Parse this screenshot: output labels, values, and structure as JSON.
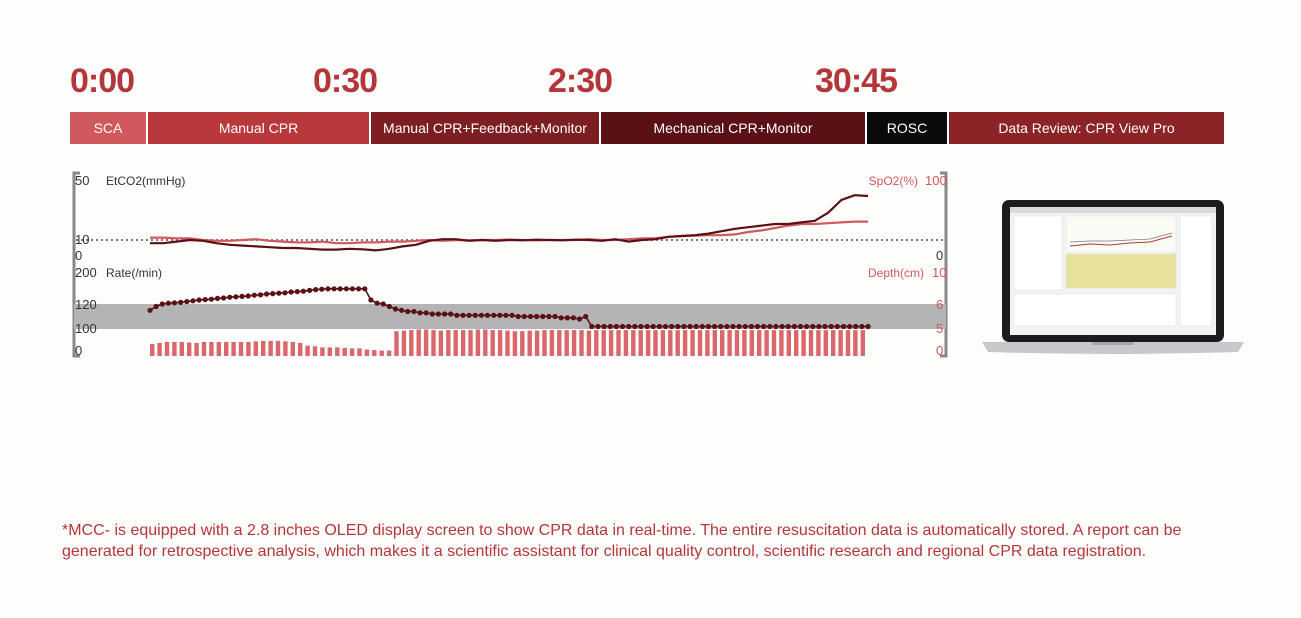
{
  "timeline": {
    "times": [
      "0:00",
      "0:30",
      "2:30",
      "30:45"
    ],
    "phases": [
      {
        "label": "SCA",
        "color": "#d0595d"
      },
      {
        "label": "Manual CPR",
        "color": "#b8383b"
      },
      {
        "label": "Manual CPR+Feedback+Monitor",
        "color": "#7c1e22"
      },
      {
        "label": "Mechanical CPR+Monitor",
        "color": "#5a1014"
      },
      {
        "label": "ROSC",
        "color": "#0a0a0a"
      },
      {
        "label": "Data Review: CPR View Pro",
        "color": "#8b2327"
      }
    ]
  },
  "chart_data": [
    {
      "type": "line",
      "ylabel_left": "EtCO2(mmHg)",
      "ylabel_right": "SpO2(%)",
      "left_ticks": [
        "50",
        "10",
        "0"
      ],
      "right_ticks": [
        "100",
        "0"
      ],
      "ylim_left": [
        0,
        50
      ],
      "ylim_right": [
        0,
        100
      ],
      "reference_line": 10,
      "series": [
        {
          "name": "EtCO2(mmHg)",
          "color": "#5a1014",
          "values": [
            8,
            8,
            9,
            10,
            9.5,
            8,
            7,
            6.5,
            6,
            5.5,
            5,
            5,
            4.5,
            4,
            4,
            4.5,
            4.2,
            3.5,
            4.5,
            6,
            7,
            9.5,
            10.5,
            10.5,
            9.5,
            10,
            9.5,
            10,
            9.8,
            10.2,
            10,
            9.8,
            10.2,
            10,
            9.5,
            10.5,
            9,
            10,
            10.5,
            12,
            12.5,
            13,
            14,
            15.5,
            17,
            18,
            19,
            20,
            20,
            21,
            22,
            27,
            35,
            38,
            37.5
          ]
        },
        {
          "name": "SpO2(%)",
          "color": "#d0595d",
          "values": [
            23,
            23,
            22,
            22,
            20,
            19,
            19,
            20,
            21,
            19,
            18,
            17,
            17,
            18,
            16,
            16,
            17,
            17,
            18,
            18,
            19,
            20,
            19,
            20,
            19.5,
            20,
            20,
            20.5,
            20,
            19.5,
            20,
            20,
            20,
            21,
            20,
            20,
            21,
            22,
            22,
            24,
            25,
            25.5,
            26,
            26,
            27,
            30,
            32,
            35,
            38,
            40,
            40,
            41,
            42,
            43,
            43
          ]
        }
      ]
    },
    {
      "type": "bar",
      "ylabel_left": "Rate(/min)",
      "ylabel_right": "Depth(cm)",
      "left_ticks": [
        "200",
        "120",
        "100",
        "0"
      ],
      "right_ticks": [
        "10",
        "6",
        "5",
        "0"
      ],
      "ylim_left": [
        0,
        200
      ],
      "ylim_right": [
        0,
        10
      ],
      "target_band_rate": [
        100,
        120
      ],
      "series": [
        {
          "name": "Rate(/min)",
          "type": "line",
          "color": "#5a1014",
          "values": [
            115,
            118,
            120,
            122,
            123,
            124,
            126,
            128,
            130,
            131,
            132,
            134,
            135,
            137,
            138,
            139,
            140,
            142,
            143,
            145,
            146,
            147,
            148,
            150,
            151,
            152,
            154,
            156,
            157,
            158,
            158,
            158,
            158,
            158,
            158,
            158,
            130,
            122,
            120,
            118,
            116,
            115,
            114,
            114,
            113,
            113,
            112,
            112,
            112,
            112,
            111,
            111,
            111,
            111,
            111,
            111,
            111,
            111,
            111,
            111,
            110,
            110,
            110,
            110,
            110,
            110,
            110,
            109,
            109,
            109,
            108,
            110,
            102,
            102,
            102,
            102,
            102,
            102,
            102,
            102,
            102,
            102,
            102,
            102,
            102,
            102,
            102,
            102,
            102,
            102,
            102,
            102,
            102,
            102,
            102,
            102,
            102,
            102,
            102,
            102,
            102,
            102,
            102,
            102,
            102,
            102,
            102,
            102,
            102,
            102,
            102,
            102,
            102,
            102,
            102,
            102,
            102,
            102
          ]
        },
        {
          "name": "Depth(cm)",
          "type": "bar",
          "color": "#d9676b",
          "values": [
            2.2,
            2.4,
            2.6,
            2.6,
            2.6,
            2.5,
            2.4,
            2.6,
            2.6,
            2.6,
            2.6,
            2.6,
            2.6,
            2.6,
            2.7,
            2.8,
            2.8,
            2.8,
            2.7,
            2.6,
            2.4,
            1.9,
            1.8,
            1.6,
            1.6,
            1.6,
            1.5,
            1.4,
            1.4,
            1.2,
            1.1,
            1.0,
            1.0,
            4.6,
            4.7,
            4.8,
            4.9,
            4.9,
            4.8,
            4.7,
            4.8,
            4.8,
            4.8,
            4.8,
            4.9,
            4.9,
            4.8,
            4.8,
            4.7,
            4.6,
            4.6,
            4.7,
            4.7,
            4.8,
            4.8,
            4.8,
            4.8,
            4.8,
            4.8,
            4.7,
            4.8,
            4.8,
            4.8,
            4.8,
            4.8,
            4.8,
            4.8,
            4.8,
            4.8,
            4.8,
            4.8,
            4.8,
            4.8,
            4.8,
            4.8,
            4.8,
            4.8,
            4.8,
            4.8,
            4.8,
            4.8,
            4.8,
            4.8,
            4.8,
            4.8,
            4.8,
            4.8,
            4.8,
            4.8,
            4.8,
            4.8,
            4.8,
            4.8,
            4.8,
            4.8,
            4.8,
            4.8
          ]
        }
      ]
    }
  ],
  "footnote": "*MCC- is equipped with a 2.8 inches OLED display screen to show CPR data in real-time. The entire resuscitation data is automatically stored. A report can be generated for retrospective analysis, which makes it a scientific assistant for clinical quality control, scientific research and regional CPR data registration."
}
